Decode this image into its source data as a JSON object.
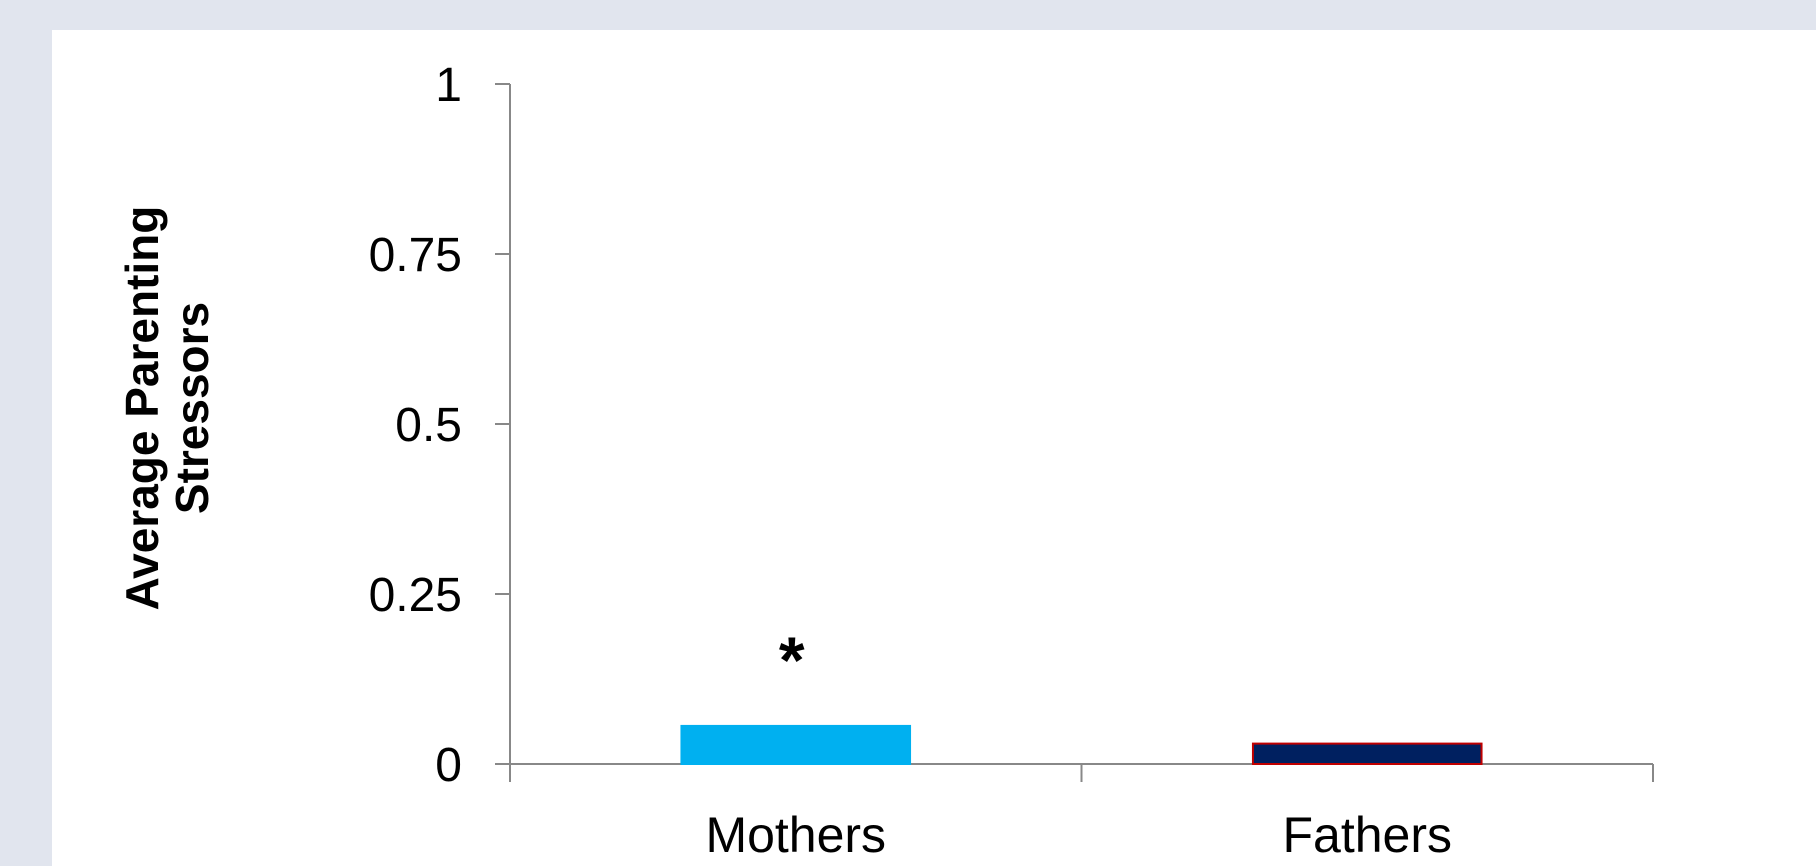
{
  "chart_data": {
    "type": "bar",
    "categories": [
      "Mothers",
      "Fathers"
    ],
    "values": [
      0.056,
      0.03
    ],
    "colors": [
      "#00b0f0",
      "#002060"
    ],
    "outline_colors": [
      "#00b0f0",
      "#c00000"
    ],
    "title": "",
    "xlabel": "",
    "ylabel_lines": [
      "Average Parenting",
      "Stressors"
    ],
    "ylim": [
      0,
      1
    ],
    "yticks": [
      0,
      0.25,
      0.5,
      0.75,
      1
    ],
    "ytick_labels": [
      "0",
      "0.25",
      "0.5",
      "0.75",
      "1"
    ],
    "grid": false,
    "legend": "none",
    "annotations": [
      {
        "text": "*",
        "category": "Mothers",
        "y": 0.175
      }
    ]
  },
  "colors": {
    "background": "#e1e5ee",
    "panel": "#ffffff",
    "axis": "#888888"
  }
}
